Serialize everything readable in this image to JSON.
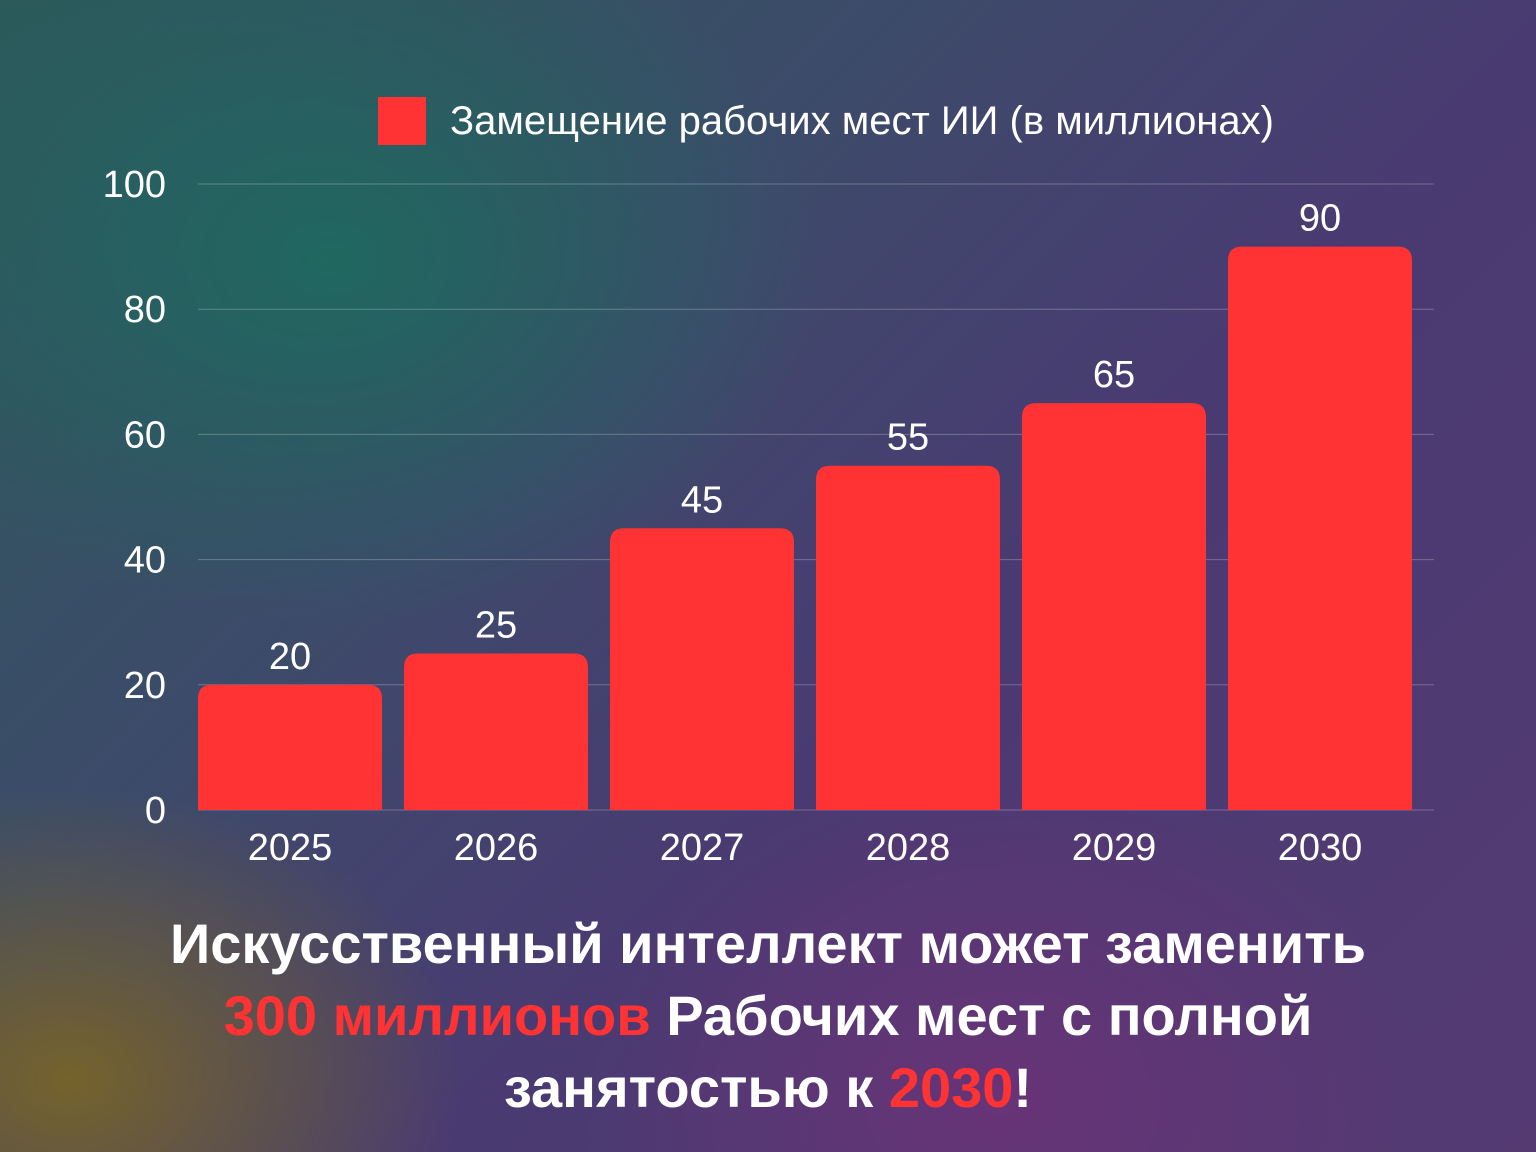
{
  "colors": {
    "bar": "#ff3333",
    "accent_text": "#ff3333",
    "text": "#ffffff",
    "grid": "rgba(255,255,255,0.25)"
  },
  "chart_data": {
    "type": "bar",
    "categories": [
      "2025",
      "2026",
      "2027",
      "2028",
      "2029",
      "2030"
    ],
    "series": [
      {
        "name": "Замещение рабочих мест ИИ (в миллионах)",
        "values": [
          20,
          25,
          45,
          55,
          65,
          90
        ]
      }
    ],
    "data_labels": [
      "20",
      "25",
      "45",
      "55",
      "65",
      "90"
    ],
    "ylim": [
      0,
      100
    ],
    "yticks": [
      0,
      20,
      40,
      60,
      80,
      100
    ],
    "ytick_labels": [
      "0",
      "20",
      "40",
      "60",
      "80",
      "100"
    ],
    "grid": true,
    "legend_position": "top"
  },
  "headline": {
    "line1": "Искусственный интеллект может заменить",
    "line2_highlight": "300 миллионов",
    "line2_rest": " Рабочих мест с полной",
    "line3_start": "занятостью к ",
    "line3_highlight": "2030",
    "line3_end": "!"
  }
}
